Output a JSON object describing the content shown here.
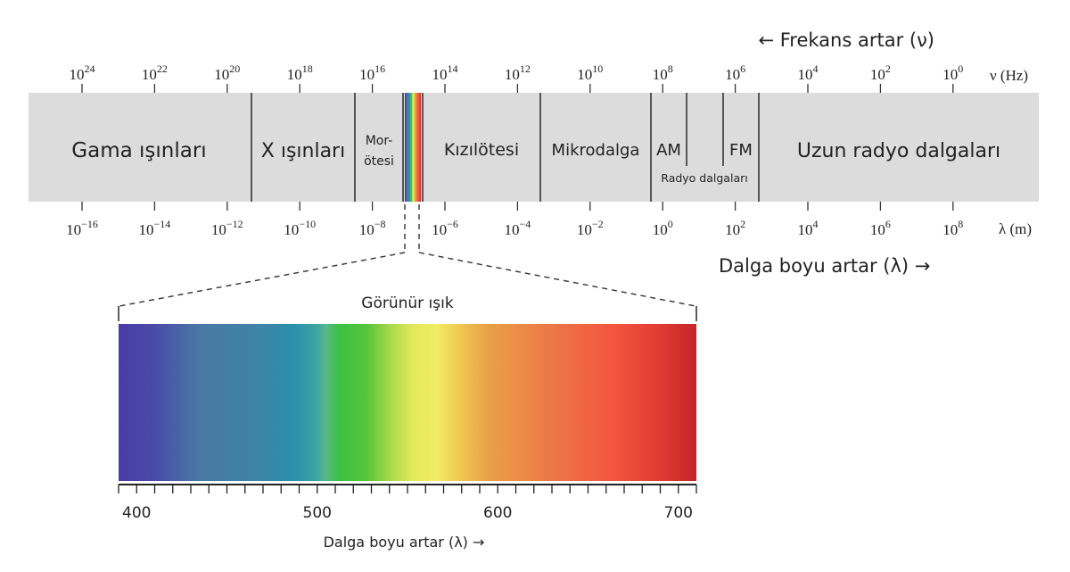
{
  "frequency_header": "← Frekans artar (ν)",
  "frequency_unit": "ν (Hz)",
  "wavelength_unit": "λ (m)",
  "wavelength_footer": "Dalga boyu artar (λ) →",
  "frequency_ticks": [
    {
      "base": "10",
      "exp": "24"
    },
    {
      "base": "10",
      "exp": "22"
    },
    {
      "base": "10",
      "exp": "20"
    },
    {
      "base": "10",
      "exp": "18"
    },
    {
      "base": "10",
      "exp": "16"
    },
    {
      "base": "10",
      "exp": "14"
    },
    {
      "base": "10",
      "exp": "12"
    },
    {
      "base": "10",
      "exp": "10"
    },
    {
      "base": "10",
      "exp": "8"
    },
    {
      "base": "10",
      "exp": "6"
    },
    {
      "base": "10",
      "exp": "4"
    },
    {
      "base": "10",
      "exp": "2"
    },
    {
      "base": "10",
      "exp": "0"
    }
  ],
  "wavelength_ticks": [
    {
      "base": "10",
      "exp": "−16"
    },
    {
      "base": "10",
      "exp": "−14"
    },
    {
      "base": "10",
      "exp": "−12"
    },
    {
      "base": "10",
      "exp": "−10"
    },
    {
      "base": "10",
      "exp": "−8"
    },
    {
      "base": "10",
      "exp": "−6"
    },
    {
      "base": "10",
      "exp": "−4"
    },
    {
      "base": "10",
      "exp": "−2"
    },
    {
      "base": "10",
      "exp": "0"
    },
    {
      "base": "10",
      "exp": "2"
    },
    {
      "base": "10",
      "exp": "4"
    },
    {
      "base": "10",
      "exp": "6"
    },
    {
      "base": "10",
      "exp": "8"
    }
  ],
  "regions": {
    "gamma": "Gama ışınları",
    "xray": "X ışınları",
    "uv_line1": "Mor-",
    "uv_line2": "ötesi",
    "infrared": "Kızılötesi",
    "microwave": "Mikrodalga",
    "am": "AM",
    "fm": "FM",
    "radio": "Radyo dalgaları",
    "long_radio": "Uzun radyo dalgaları"
  },
  "band_color": "#dcdcdc",
  "visible": {
    "title": "Görünür ışık",
    "scale_min_nm": 390,
    "scale_max_nm": 710,
    "tick_step_nm": 10,
    "labels": [
      "400",
      "500",
      "600",
      "700"
    ],
    "footer": "Dalga boyu artar (λ) →"
  }
}
